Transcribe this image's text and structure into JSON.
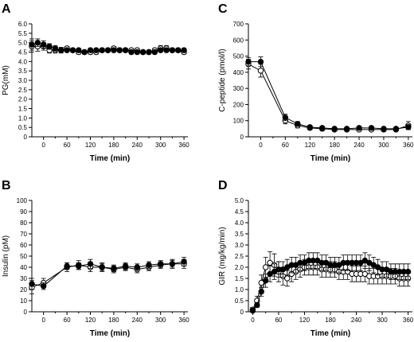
{
  "chart_data": [
    {
      "id": "A",
      "type": "line",
      "panel_label": "A",
      "xlabel": "Time (min)",
      "ylabel": "PG(mM)",
      "xlim": [
        -30,
        370
      ],
      "ylim": [
        0,
        6
      ],
      "xticks": [
        0,
        60,
        120,
        180,
        240,
        300,
        360
      ],
      "yticks": [
        "0",
        "0.5",
        "1.0",
        "1.5",
        "2.0",
        "2.5",
        "3.0",
        "3.5",
        "4.0",
        "4.5",
        "5.0",
        "5.5",
        "6.0"
      ],
      "ytick_values": [
        0,
        0.5,
        1.0,
        1.5,
        2.0,
        2.5,
        3.0,
        3.5,
        4.0,
        4.5,
        5.0,
        5.5,
        6.0
      ],
      "series": [
        {
          "marker": "filled",
          "x": [
            -30,
            -15,
            0,
            15,
            30,
            45,
            60,
            75,
            90,
            105,
            120,
            135,
            150,
            165,
            180,
            195,
            210,
            225,
            240,
            255,
            270,
            285,
            300,
            315,
            330,
            345,
            360
          ],
          "y": [
            4.9,
            5.0,
            4.9,
            4.8,
            4.7,
            4.6,
            4.6,
            4.6,
            4.6,
            4.5,
            4.6,
            4.6,
            4.6,
            4.6,
            4.6,
            4.6,
            4.6,
            4.5,
            4.5,
            4.5,
            4.5,
            4.5,
            4.6,
            4.6,
            4.6,
            4.6,
            4.6
          ],
          "err": [
            0.3,
            0.2,
            0.2,
            0.15,
            0.15,
            0.1,
            0.1,
            0.1,
            0.1,
            0.1,
            0.1,
            0.1,
            0.1,
            0.1,
            0.1,
            0.1,
            0.1,
            0.1,
            0.1,
            0.1,
            0.1,
            0.1,
            0.1,
            0.1,
            0.1,
            0.1,
            0.1
          ]
        },
        {
          "marker": "open",
          "x": [
            -30,
            -15,
            0,
            15,
            30,
            45,
            60,
            75,
            90,
            105,
            120,
            135,
            150,
            165,
            180,
            195,
            210,
            225,
            240,
            255,
            270,
            285,
            300,
            315,
            330,
            345,
            360
          ],
          "y": [
            4.8,
            4.8,
            4.8,
            4.6,
            4.6,
            4.6,
            4.7,
            4.6,
            4.5,
            4.5,
            4.5,
            4.5,
            4.6,
            4.6,
            4.7,
            4.6,
            4.6,
            4.6,
            4.6,
            4.5,
            4.5,
            4.6,
            4.7,
            4.7,
            4.6,
            4.6,
            4.5
          ],
          "err": [
            0.3,
            0.25,
            0.2,
            0.15,
            0.15,
            0.15,
            0.1,
            0.1,
            0.1,
            0.1,
            0.1,
            0.1,
            0.1,
            0.1,
            0.1,
            0.1,
            0.1,
            0.1,
            0.1,
            0.1,
            0.1,
            0.1,
            0.15,
            0.15,
            0.1,
            0.1,
            0.1
          ]
        }
      ]
    },
    {
      "id": "C",
      "type": "line",
      "panel_label": "C",
      "xlabel": "Time (min)",
      "ylabel": "C-peptide (pmol/l)",
      "xlim": [
        -30,
        370
      ],
      "ylim": [
        0,
        700
      ],
      "xticks": [
        0,
        60,
        120,
        180,
        240,
        300,
        360
      ],
      "yticks": [
        "0",
        "100",
        "200",
        "300",
        "400",
        "500",
        "600",
        "700"
      ],
      "ytick_values": [
        0,
        100,
        200,
        300,
        400,
        500,
        600,
        700
      ],
      "series": [
        {
          "marker": "filled",
          "x": [
            -30,
            0,
            60,
            90,
            120,
            150,
            180,
            210,
            240,
            270,
            300,
            330,
            360
          ],
          "y": [
            465,
            465,
            120,
            80,
            60,
            55,
            50,
            50,
            55,
            55,
            50,
            50,
            60
          ],
          "err": [
            25,
            30,
            20,
            15,
            10,
            10,
            8,
            8,
            10,
            10,
            8,
            8,
            15
          ]
        },
        {
          "marker": "open",
          "x": [
            -30,
            0,
            60,
            90,
            120,
            150,
            180,
            210,
            240,
            270,
            300,
            330,
            360
          ],
          "y": [
            450,
            410,
            100,
            70,
            55,
            50,
            45,
            45,
            45,
            45,
            45,
            45,
            70
          ],
          "err": [
            30,
            40,
            20,
            15,
            10,
            10,
            8,
            8,
            8,
            8,
            8,
            8,
            25
          ]
        }
      ]
    },
    {
      "id": "B",
      "type": "line",
      "panel_label": "B",
      "xlabel": "Time (min)",
      "ylabel": "Insulin (pM)",
      "xlim": [
        -30,
        370
      ],
      "ylim": [
        0,
        100
      ],
      "xticks": [
        0,
        60,
        120,
        180,
        240,
        300,
        360
      ],
      "yticks": [
        "0",
        "10",
        "20",
        "30",
        "40",
        "50",
        "60",
        "70",
        "80",
        "90",
        "100"
      ],
      "ytick_values": [
        0,
        10,
        20,
        30,
        40,
        50,
        60,
        70,
        80,
        90,
        100
      ],
      "series": [
        {
          "marker": "filled",
          "x": [
            -30,
            0,
            60,
            90,
            120,
            150,
            180,
            210,
            240,
            270,
            300,
            330,
            360
          ],
          "y": [
            25,
            23,
            41,
            41,
            43,
            40,
            39,
            41,
            40,
            42,
            43,
            43,
            45
          ],
          "err": [
            5,
            3,
            3,
            3,
            4,
            3,
            3,
            3,
            3,
            3,
            3,
            3,
            4
          ]
        },
        {
          "marker": "open",
          "x": [
            -30,
            0,
            60,
            90,
            120,
            150,
            180,
            210,
            240,
            270,
            300,
            330,
            360
          ],
          "y": [
            22,
            26,
            40,
            42,
            40,
            40,
            38,
            40,
            38,
            40,
            42,
            43,
            43
          ],
          "err": [
            6,
            4,
            4,
            4,
            4,
            4,
            3,
            3,
            3,
            3,
            3,
            4,
            4
          ]
        }
      ]
    },
    {
      "id": "D",
      "type": "line",
      "panel_label": "D",
      "xlabel": "Time (min)",
      "ylabel": "GIR (mg/kg/min)",
      "xlim": [
        -10,
        370
      ],
      "ylim": [
        0,
        5
      ],
      "xticks": [
        0,
        60,
        120,
        180,
        240,
        300,
        360
      ],
      "yticks": [
        "0",
        "0.5",
        "1.0",
        "1.5",
        "2.0",
        "2.5",
        "3.0",
        "3.5",
        "4.0",
        "4.5",
        "5.0"
      ],
      "ytick_values": [
        0,
        0.5,
        1.0,
        1.5,
        2.0,
        2.5,
        3.0,
        3.5,
        4.0,
        4.5,
        5.0
      ],
      "series": [
        {
          "marker": "filled",
          "x": [
            0,
            10,
            20,
            30,
            40,
            50,
            60,
            70,
            80,
            90,
            100,
            110,
            120,
            130,
            140,
            150,
            160,
            170,
            180,
            190,
            200,
            210,
            220,
            230,
            240,
            250,
            260,
            270,
            280,
            290,
            300,
            310,
            320,
            330,
            340,
            350,
            360
          ],
          "y": [
            0.05,
            0.3,
            0.9,
            1.4,
            1.7,
            1.8,
            1.9,
            1.9,
            2.0,
            2.1,
            2.1,
            2.2,
            2.2,
            2.3,
            2.3,
            2.3,
            2.2,
            2.2,
            2.1,
            2.1,
            2.1,
            2.2,
            2.2,
            2.2,
            2.2,
            2.2,
            2.3,
            2.2,
            2.1,
            2.0,
            1.9,
            1.9,
            1.8,
            1.8,
            1.8,
            1.8,
            1.8
          ],
          "err": [
            0.05,
            0.1,
            0.2,
            0.3,
            0.35,
            0.35,
            0.35,
            0.35,
            0.35,
            0.35,
            0.35,
            0.35,
            0.35,
            0.35,
            0.35,
            0.35,
            0.35,
            0.35,
            0.35,
            0.35,
            0.35,
            0.35,
            0.35,
            0.35,
            0.35,
            0.35,
            0.35,
            0.35,
            0.35,
            0.35,
            0.35,
            0.35,
            0.35,
            0.35,
            0.35,
            0.35,
            0.35
          ]
        },
        {
          "marker": "open",
          "x": [
            0,
            10,
            20,
            30,
            40,
            50,
            60,
            70,
            80,
            90,
            100,
            110,
            120,
            130,
            140,
            150,
            160,
            170,
            180,
            190,
            200,
            210,
            220,
            230,
            240,
            250,
            260,
            270,
            280,
            290,
            300,
            310,
            320,
            330,
            340,
            350,
            360
          ],
          "y": [
            0.1,
            0.5,
            1.3,
            2.0,
            2.2,
            2.1,
            1.8,
            1.6,
            1.5,
            1.7,
            1.8,
            1.9,
            2.0,
            2.0,
            2.0,
            2.0,
            1.9,
            1.9,
            1.9,
            1.9,
            1.8,
            1.8,
            1.8,
            1.7,
            1.7,
            1.7,
            1.7,
            1.6,
            1.6,
            1.6,
            1.6,
            1.6,
            1.6,
            1.6,
            1.5,
            1.5,
            1.5
          ],
          "err": [
            0.1,
            0.2,
            0.35,
            0.45,
            0.5,
            0.5,
            0.45,
            0.4,
            0.35,
            0.35,
            0.35,
            0.35,
            0.35,
            0.35,
            0.35,
            0.35,
            0.35,
            0.35,
            0.35,
            0.35,
            0.35,
            0.35,
            0.35,
            0.35,
            0.35,
            0.35,
            0.35,
            0.35,
            0.35,
            0.35,
            0.35,
            0.35,
            0.35,
            0.35,
            0.35,
            0.35,
            0.35
          ]
        }
      ]
    }
  ]
}
